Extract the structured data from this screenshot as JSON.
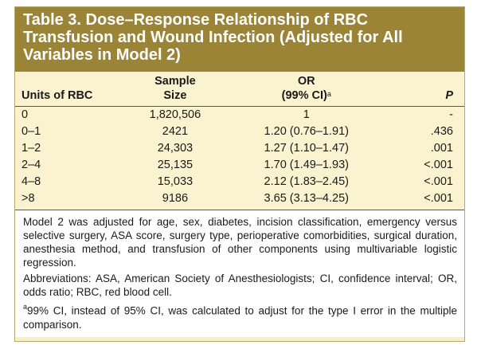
{
  "title": {
    "line1": "Table 3.  Dose–Response Relationship of RBC",
    "line2": "Transfusion and Wound Infection (Adjusted for All",
    "line3": "Variables in Model 2)"
  },
  "columns": {
    "units": "Units of RBC",
    "size_line1": "Sample",
    "size_line2": "Size",
    "or_line1": "OR",
    "or_line2": "(99% CI)",
    "or_footnote_marker": "a",
    "p": "P"
  },
  "rows": [
    {
      "units": "0",
      "size": "1,820,506",
      "or": "1",
      "p": "-"
    },
    {
      "units": "0–1",
      "size": "2421",
      "or": "1.20 (0.76–1.91)",
      "p": ".436"
    },
    {
      "units": "1–2",
      "size": "24,303",
      "or": "1.27 (1.10–1.47)",
      "p": ".001"
    },
    {
      "units": "2–4",
      "size": "25,135",
      "or": "1.70 (1.49–1.93)",
      "p": "<.001"
    },
    {
      "units": "4–8",
      "size": "15,033",
      "or": "2.12 (1.83–2.45)",
      "p": "<.001"
    },
    {
      "units": ">8",
      "size": "9186",
      "or": "3.65 (3.13–4.25)",
      "p": "<.001"
    }
  ],
  "notes": {
    "model2": "Model 2 was adjusted for age, sex, diabetes, incision classification, emergency versus selective surgery, ASA score, surgery type, perioperative comorbidities, surgical duration, anesthesia method, and transfusion of other components using multivariable logistic regression.",
    "abbreviations": "Abbreviations: ASA, American Society of Anesthesiologists; CI, confidence interval; OR, odds ratio; RBC, red blood cell.",
    "footnote_marker": "a",
    "footnote_a": "99% CI, instead of 95% CI, was calculated to adjust for the type I error in the multiple comparison."
  },
  "colors": {
    "title_bg": "#9b8436",
    "table_bg": "#fbf3cf",
    "rule": "#6b5a22"
  }
}
